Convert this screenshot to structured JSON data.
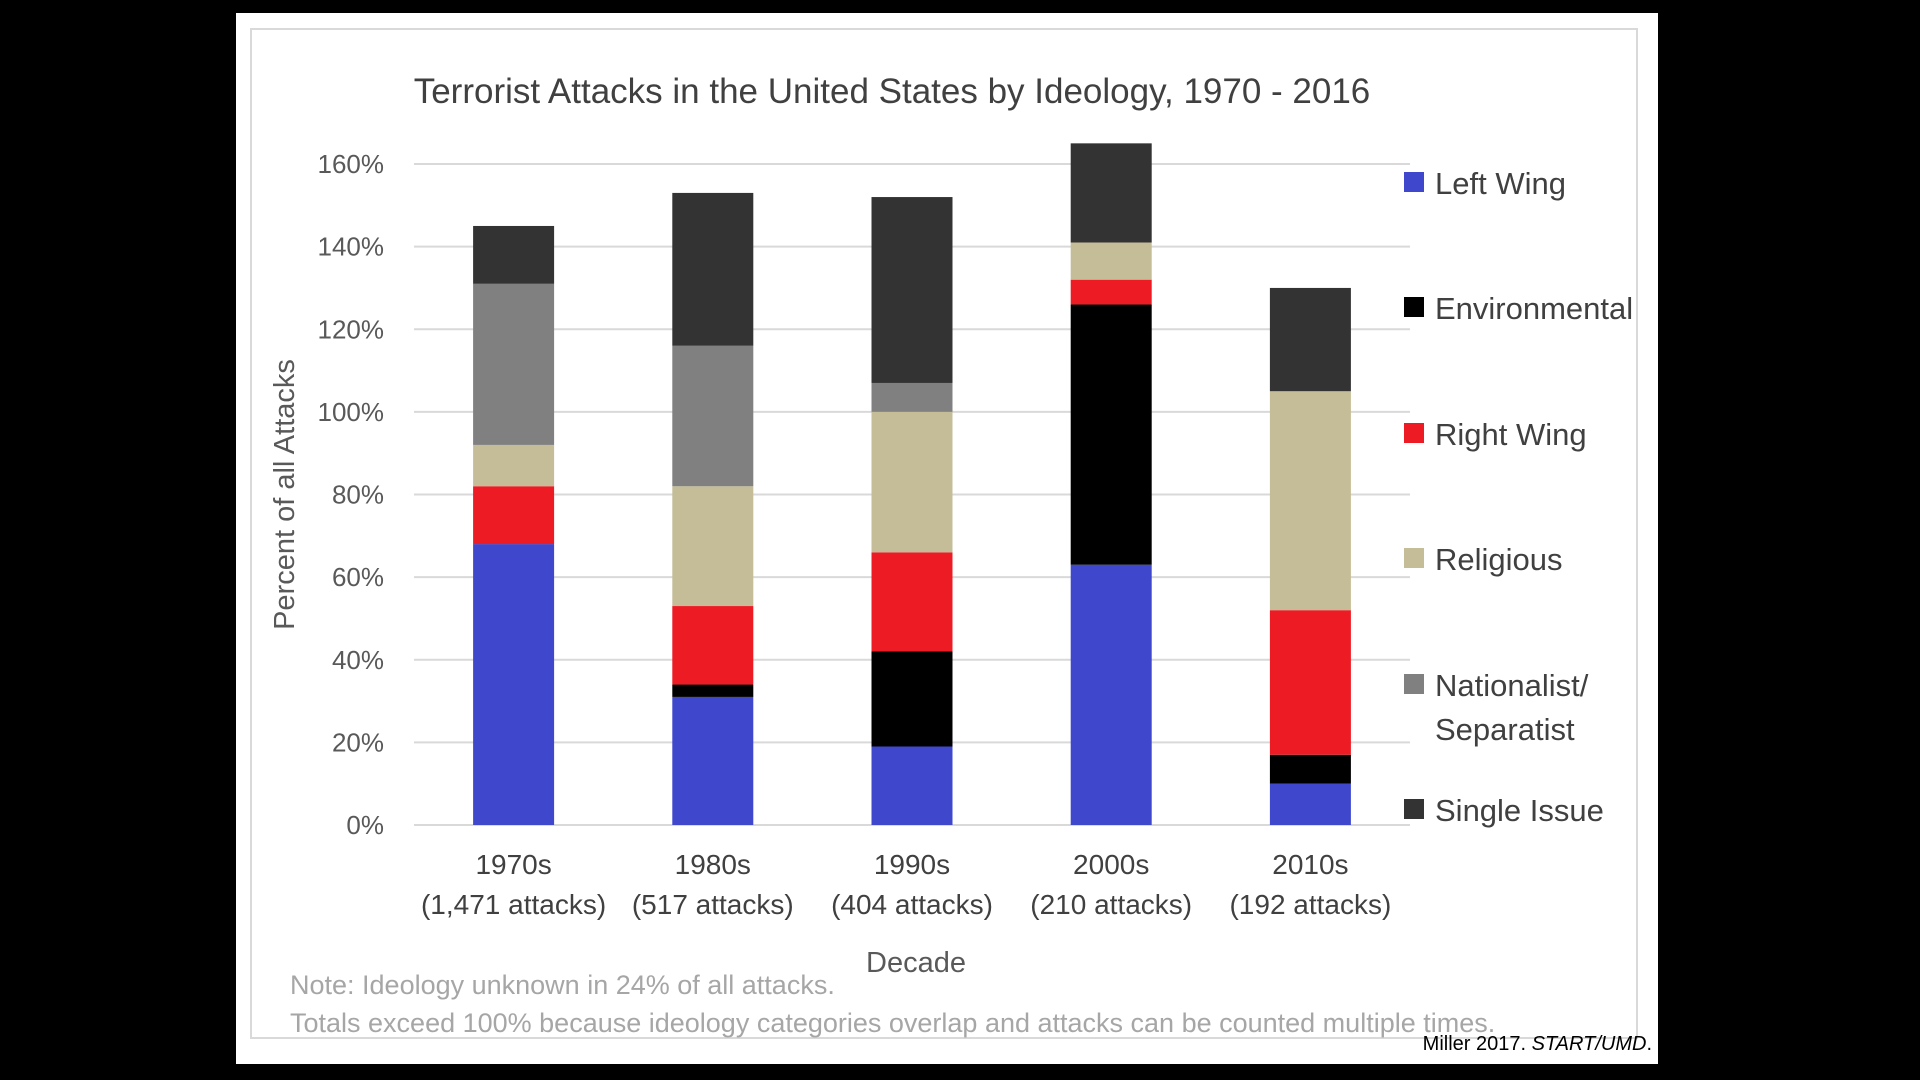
{
  "chart_data": {
    "type": "bar",
    "stacked": true,
    "title": "Terrorist Attacks in the United States by Ideology, 1970 - 2016",
    "xlabel": "Decade",
    "ylabel": "Percent of all Attacks",
    "ylim": [
      0,
      160
    ],
    "yticks": [
      "0%",
      "20%",
      "40%",
      "60%",
      "80%",
      "100%",
      "120%",
      "140%",
      "160%"
    ],
    "categories": [
      {
        "decade": "1970s",
        "attacks": "(1,471 attacks)"
      },
      {
        "decade": "1980s",
        "attacks": "(517 attacks)"
      },
      {
        "decade": "1990s",
        "attacks": "(404 attacks)"
      },
      {
        "decade": "2000s",
        "attacks": "(210 attacks)"
      },
      {
        "decade": "2010s",
        "attacks": "(192 attacks)"
      }
    ],
    "series": [
      {
        "name": "Left Wing",
        "color": "#3f48cc",
        "values": [
          68,
          31,
          19,
          63,
          10
        ]
      },
      {
        "name": "Environmental",
        "color": "#000000",
        "values": [
          0,
          3,
          23,
          63,
          7
        ]
      },
      {
        "name": "Right Wing",
        "color": "#ed1c24",
        "values": [
          14,
          19,
          24,
          6,
          35
        ]
      },
      {
        "name": "Religious",
        "color": "#c4bd97",
        "values": [
          10,
          29,
          34,
          9,
          53
        ]
      },
      {
        "name": "Nationalist/ Separatist",
        "color": "#808080",
        "values": [
          39,
          34,
          7,
          0,
          0
        ]
      },
      {
        "name": "Single Issue",
        "color": "#333333",
        "values": [
          14,
          37,
          45,
          24,
          25
        ]
      }
    ],
    "legend": {
      "position": "right",
      "labels": [
        "Left Wing",
        "Environmental",
        "Right Wing",
        "Religious",
        [
          "Nationalist/",
          "Separatist"
        ],
        "Single Issue"
      ]
    },
    "notes": [
      "Note: Ideology unknown in 24% of all attacks.",
      "Totals exceed 100% because ideology categories overlap and attacks can be counted multiple times."
    ]
  },
  "citation": {
    "author": "Miller 2017. ",
    "source": "START/UMD",
    "end": "."
  }
}
